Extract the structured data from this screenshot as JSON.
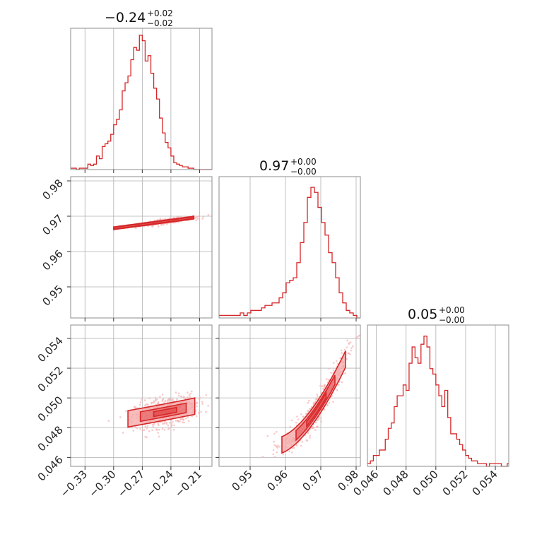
{
  "colors": {
    "accent": "#d62728",
    "grid": "#b0b0b0",
    "frame": "#8c8c8c",
    "contour_fill": "#f4a6a6",
    "contour_core": "#e34b4c",
    "scatter": "#f3b4b4"
  },
  "chart_data": {
    "type": "corner",
    "grid": true,
    "parameters": [
      {
        "title_value": "−0.24",
        "title_plus": "+0.02",
        "title_minus": "−0.02",
        "range": [
          -0.345,
          -0.197
        ],
        "ticks": [
          -0.33,
          -0.3,
          -0.27,
          -0.24,
          -0.21
        ],
        "tick_labels": [
          "−0.33",
          "−0.30",
          "−0.27",
          "−0.24",
          "−0.21"
        ],
        "histogram": {
          "bin_width": 0.003,
          "x_start": -0.345,
          "counts": [
            1,
            1,
            0,
            1,
            1,
            1,
            4,
            3,
            4,
            10,
            8,
            17,
            19,
            21,
            26,
            33,
            37,
            44,
            58,
            64,
            69,
            81,
            90,
            88,
            99,
            95,
            80,
            84,
            71,
            60,
            52,
            38,
            27,
            20,
            16,
            10,
            5,
            4,
            3,
            2,
            2,
            1,
            1,
            0,
            0,
            0,
            0,
            0,
            0,
            0
          ],
          "ymax": 100
        }
      },
      {
        "title_value": "0.97",
        "title_plus": "+0.00",
        "title_minus": "−0.00",
        "range": [
          0.9412,
          0.9812
        ],
        "ticks": [
          0.95,
          0.96,
          0.97,
          0.98
        ],
        "tick_labels": [
          "0.95",
          "0.96",
          "0.97",
          "0.98"
        ],
        "histogram": {
          "bin_width": 0.001,
          "x_start": 0.9412,
          "counts": [
            1,
            1,
            1,
            1,
            1,
            1,
            2,
            1,
            2,
            3,
            3,
            3,
            4,
            5,
            5,
            6,
            6,
            8,
            10,
            14,
            15,
            16,
            22,
            30,
            38,
            48,
            52,
            50,
            44,
            38,
            33,
            26,
            22,
            16,
            10,
            6,
            3,
            2,
            1,
            0
          ],
          "ymax": 54
        }
      },
      {
        "title_value": "0.05",
        "title_plus": "+0.00",
        "title_minus": "−0.00",
        "range": [
          0.0454,
          0.0549
        ],
        "ticks": [
          0.046,
          0.048,
          0.05,
          0.052,
          0.054
        ],
        "tick_labels": [
          "0.046",
          "0.048",
          "0.050",
          "0.052",
          "0.054"
        ],
        "histogram": {
          "bin_width": 0.0002,
          "x_start": 0.0454,
          "counts": [
            1,
            2,
            4,
            4,
            6,
            6,
            10,
            14,
            16,
            22,
            26,
            26,
            30,
            28,
            38,
            44,
            40,
            38,
            45,
            48,
            44,
            36,
            34,
            30,
            26,
            22,
            28,
            18,
            12,
            12,
            10,
            8,
            6,
            4,
            3,
            2,
            2,
            1,
            1,
            1,
            0,
            1,
            1,
            1,
            1,
            0,
            0,
            1
          ],
          "ymax": 50
        }
      }
    ],
    "pairs": [
      {
        "x_param": 0,
        "y_param": 1,
        "relation": "slope 0.000357 per unit, intercept 0.9773",
        "spread_core": 0.0004,
        "spread_outer": 0.0007
      },
      {
        "x_param": 0,
        "y_param": 2,
        "relation": "curved increasing",
        "spread": 0.0006
      },
      {
        "x_param": 1,
        "y_param": 2,
        "relation": "curved increasing",
        "spread": 0.0006
      }
    ]
  }
}
